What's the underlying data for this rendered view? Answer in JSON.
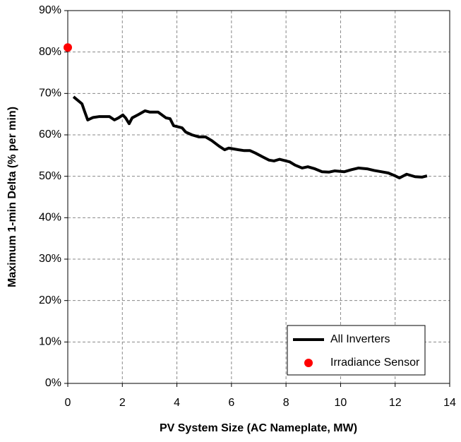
{
  "chart_data": {
    "type": "line",
    "x_label": "PV System Size (AC Nameplate, MW)",
    "y_label": "Maximum 1-min Delta (% per min)",
    "xlim": [
      0,
      14
    ],
    "xticks": [
      0,
      2,
      4,
      6,
      8,
      10,
      12,
      14
    ],
    "ylim": [
      0,
      90
    ],
    "yticks": [
      {
        "value": 0,
        "label": "0%"
      },
      {
        "value": 10,
        "label": "10%"
      },
      {
        "value": 20,
        "label": "20%"
      },
      {
        "value": 30,
        "label": "30%"
      },
      {
        "value": 40,
        "label": "40%"
      },
      {
        "value": 50,
        "label": "50%"
      },
      {
        "value": 60,
        "label": "60%"
      },
      {
        "value": 70,
        "label": "70%"
      },
      {
        "value": 80,
        "label": "80%"
      },
      {
        "value": 90,
        "label": "90%"
      }
    ],
    "grid": true,
    "legend": "lower right",
    "series": [
      {
        "name": "All Inverters",
        "type": "line",
        "color": "#000000",
        "x": [
          0.21,
          0.52,
          0.62,
          0.73,
          0.93,
          1.14,
          1.53,
          1.71,
          1.86,
          2.02,
          2.12,
          2.25,
          2.36,
          2.59,
          2.83,
          3.0,
          3.31,
          3.6,
          3.75,
          3.88,
          4.19,
          4.32,
          4.55,
          4.81,
          5.05,
          5.28,
          5.54,
          5.75,
          5.9,
          6.26,
          6.47,
          6.68,
          6.88,
          7.14,
          7.38,
          7.56,
          7.76,
          8.13,
          8.33,
          8.59,
          8.8,
          9.06,
          9.32,
          9.57,
          9.78,
          10.14,
          10.4,
          10.66,
          10.97,
          11.23,
          11.49,
          11.75,
          12.0,
          12.16,
          12.42,
          12.73,
          12.99,
          13.17
        ],
        "values": [
          69.2,
          67.5,
          65.6,
          63.6,
          64.2,
          64.4,
          64.4,
          63.6,
          64.1,
          64.8,
          64.1,
          62.7,
          64.1,
          64.9,
          65.8,
          65.5,
          65.5,
          64.1,
          63.9,
          62.2,
          61.7,
          60.7,
          60.0,
          59.5,
          59.5,
          58.6,
          57.3,
          56.4,
          56.8,
          56.4,
          56.2,
          56.2,
          55.6,
          54.7,
          53.9,
          53.7,
          54.1,
          53.5,
          52.7,
          52.0,
          52.3,
          51.8,
          51.1,
          51.0,
          51.3,
          51.1,
          51.6,
          52.0,
          51.8,
          51.4,
          51.1,
          50.8,
          50.1,
          49.6,
          50.5,
          49.9,
          49.8,
          50.1
        ]
      },
      {
        "name": "Irradiance Sensor",
        "type": "scatter",
        "color": "#ff0000",
        "x": [
          0
        ],
        "values": [
          81.1
        ]
      }
    ]
  }
}
